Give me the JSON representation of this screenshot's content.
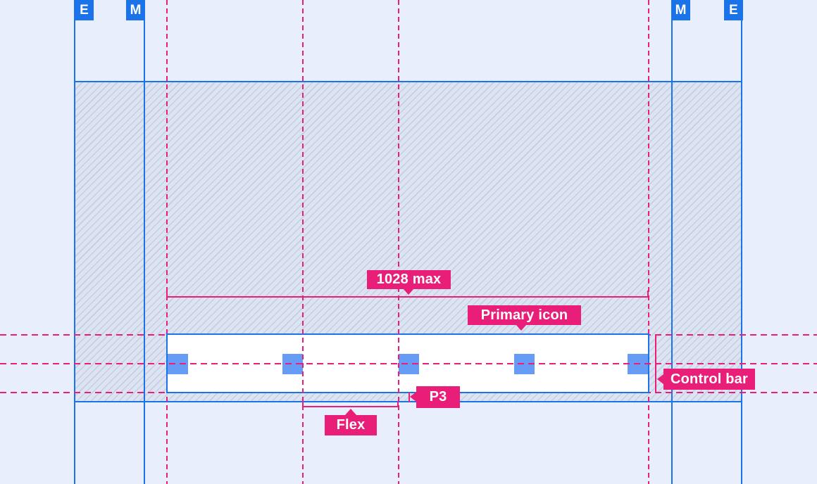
{
  "colors": {
    "background": "#e8eefb",
    "accent_blue": "#1a73e8",
    "icon_blue": "#669cf5",
    "annotation_pink": "#e91e78",
    "hatch_base": "#dce3f2",
    "hatch_stripe": "#c6cedf"
  },
  "margin_badges": {
    "left_outer": "E",
    "left_inner": "M",
    "right_inner": "M",
    "right_outer": "E"
  },
  "annotations": {
    "max_width": "1028 max",
    "primary_icon": "Primary icon",
    "control_bar": "Control bar",
    "padding_bottom": "P3",
    "flex_gap": "Flex"
  },
  "control_bar": {
    "icon_count": 5,
    "icon_lefts": [
      238,
      401,
      566,
      730,
      891
    ]
  }
}
